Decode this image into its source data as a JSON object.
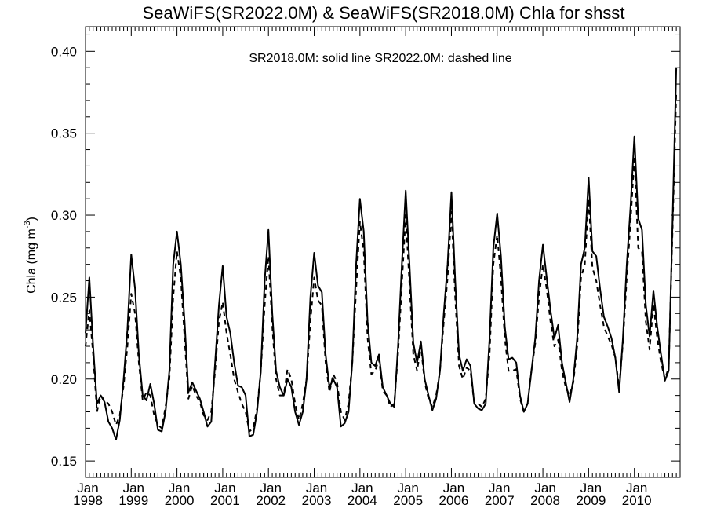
{
  "chart_data": {
    "type": "line",
    "title": "SeaWiFS(SR2022.0M) & SeaWiFS(SR2018.0M)  Chla for shsst",
    "ylabel_main": "Chla (mg m",
    "ylabel_sup": "-3",
    "ylabel_close": ")",
    "annotation": "SR2018.0M: solid line   SR2022.0M: dashed line",
    "ylim": [
      0.14,
      0.415
    ],
    "yticks": [
      0.15,
      0.2,
      0.25,
      0.3,
      0.35,
      0.4
    ],
    "ytick_labels": [
      "0.15",
      "0.20",
      "0.25",
      "0.30",
      "0.35",
      "0.40"
    ],
    "x_start": "1998-01",
    "x_end": "2010-12",
    "xticks": [
      {
        "month": "Jan",
        "year": "1998"
      },
      {
        "month": "Jan",
        "year": "1999"
      },
      {
        "month": "Jan",
        "year": "2000"
      },
      {
        "month": "Jan",
        "year": "2001"
      },
      {
        "month": "Jan",
        "year": "2002"
      },
      {
        "month": "Jan",
        "year": "2003"
      },
      {
        "month": "Jan",
        "year": "2004"
      },
      {
        "month": "Jan",
        "year": "2005"
      },
      {
        "month": "Jan",
        "year": "2006"
      },
      {
        "month": "Jan",
        "year": "2007"
      },
      {
        "month": "Jan",
        "year": "2008"
      },
      {
        "month": "Jan",
        "year": "2009"
      },
      {
        "month": "Jan",
        "year": "2010"
      }
    ],
    "grid": false,
    "series": [
      {
        "name": "SR2018.0M",
        "style": "solid",
        "color": "#000000",
        "values": [
          0.228,
          0.262,
          0.22,
          0.185,
          0.19,
          0.186,
          0.174,
          0.17,
          0.163,
          0.175,
          0.2,
          0.23,
          0.276,
          0.255,
          0.215,
          0.19,
          0.187,
          0.197,
          0.185,
          0.169,
          0.168,
          0.18,
          0.205,
          0.27,
          0.29,
          0.27,
          0.235,
          0.192,
          0.198,
          0.193,
          0.188,
          0.18,
          0.171,
          0.174,
          0.21,
          0.245,
          0.269,
          0.238,
          0.228,
          0.21,
          0.196,
          0.195,
          0.19,
          0.165,
          0.166,
          0.18,
          0.205,
          0.26,
          0.291,
          0.24,
          0.205,
          0.195,
          0.19,
          0.2,
          0.195,
          0.18,
          0.172,
          0.18,
          0.2,
          0.25,
          0.277,
          0.257,
          0.253,
          0.215,
          0.195,
          0.2,
          0.195,
          0.171,
          0.173,
          0.18,
          0.21,
          0.27,
          0.31,
          0.29,
          0.235,
          0.21,
          0.208,
          0.215,
          0.195,
          0.19,
          0.185,
          0.183,
          0.22,
          0.27,
          0.315,
          0.27,
          0.222,
          0.21,
          0.223,
          0.2,
          0.19,
          0.181,
          0.188,
          0.205,
          0.24,
          0.27,
          0.314,
          0.26,
          0.215,
          0.205,
          0.212,
          0.208,
          0.185,
          0.182,
          0.181,
          0.185,
          0.225,
          0.28,
          0.301,
          0.275,
          0.232,
          0.212,
          0.213,
          0.21,
          0.19,
          0.18,
          0.185,
          0.205,
          0.225,
          0.26,
          0.282,
          0.262,
          0.242,
          0.225,
          0.233,
          0.21,
          0.198,
          0.186,
          0.2,
          0.225,
          0.27,
          0.28,
          0.323,
          0.278,
          0.275,
          0.255,
          0.238,
          0.232,
          0.225,
          0.213,
          0.192,
          0.225,
          0.27,
          0.305,
          0.348,
          0.298,
          0.291,
          0.245,
          0.226,
          0.254,
          0.232,
          0.215,
          0.199,
          0.205,
          0.295,
          0.39
        ]
      },
      {
        "name": "SR2022.0M",
        "style": "dashed",
        "color": "#000000",
        "values": [
          0.22,
          0.242,
          0.215,
          0.18,
          0.19,
          0.187,
          0.185,
          0.18,
          0.172,
          0.178,
          0.196,
          0.22,
          0.252,
          0.24,
          0.21,
          0.187,
          0.192,
          0.19,
          0.178,
          0.172,
          0.17,
          0.183,
          0.2,
          0.25,
          0.278,
          0.262,
          0.225,
          0.188,
          0.196,
          0.19,
          0.186,
          0.178,
          0.175,
          0.18,
          0.205,
          0.235,
          0.247,
          0.228,
          0.215,
          0.2,
          0.192,
          0.185,
          0.18,
          0.168,
          0.17,
          0.182,
          0.205,
          0.245,
          0.275,
          0.232,
          0.2,
          0.19,
          0.19,
          0.206,
          0.2,
          0.185,
          0.175,
          0.185,
          0.2,
          0.235,
          0.262,
          0.248,
          0.245,
          0.21,
          0.192,
          0.203,
          0.198,
          0.18,
          0.175,
          0.185,
          0.21,
          0.255,
          0.296,
          0.278,
          0.225,
          0.203,
          0.205,
          0.212,
          0.193,
          0.19,
          0.183,
          0.185,
          0.215,
          0.258,
          0.3,
          0.258,
          0.215,
          0.205,
          0.22,
          0.198,
          0.188,
          0.183,
          0.19,
          0.205,
          0.235,
          0.262,
          0.302,
          0.25,
          0.208,
          0.2,
          0.207,
          0.205,
          0.185,
          0.185,
          0.183,
          0.188,
          0.215,
          0.27,
          0.288,
          0.262,
          0.225,
          0.205,
          0.205,
          0.206,
          0.188,
          0.18,
          0.185,
          0.205,
          0.222,
          0.25,
          0.27,
          0.255,
          0.235,
          0.22,
          0.224,
          0.205,
          0.195,
          0.19,
          0.198,
          0.22,
          0.262,
          0.27,
          0.31,
          0.268,
          0.26,
          0.245,
          0.232,
          0.226,
          0.221,
          0.213,
          0.195,
          0.222,
          0.262,
          0.295,
          0.336,
          0.28,
          0.278,
          0.235,
          0.218,
          0.246,
          0.225,
          0.21,
          0.2,
          0.207,
          0.29,
          0.375
        ]
      }
    ]
  }
}
